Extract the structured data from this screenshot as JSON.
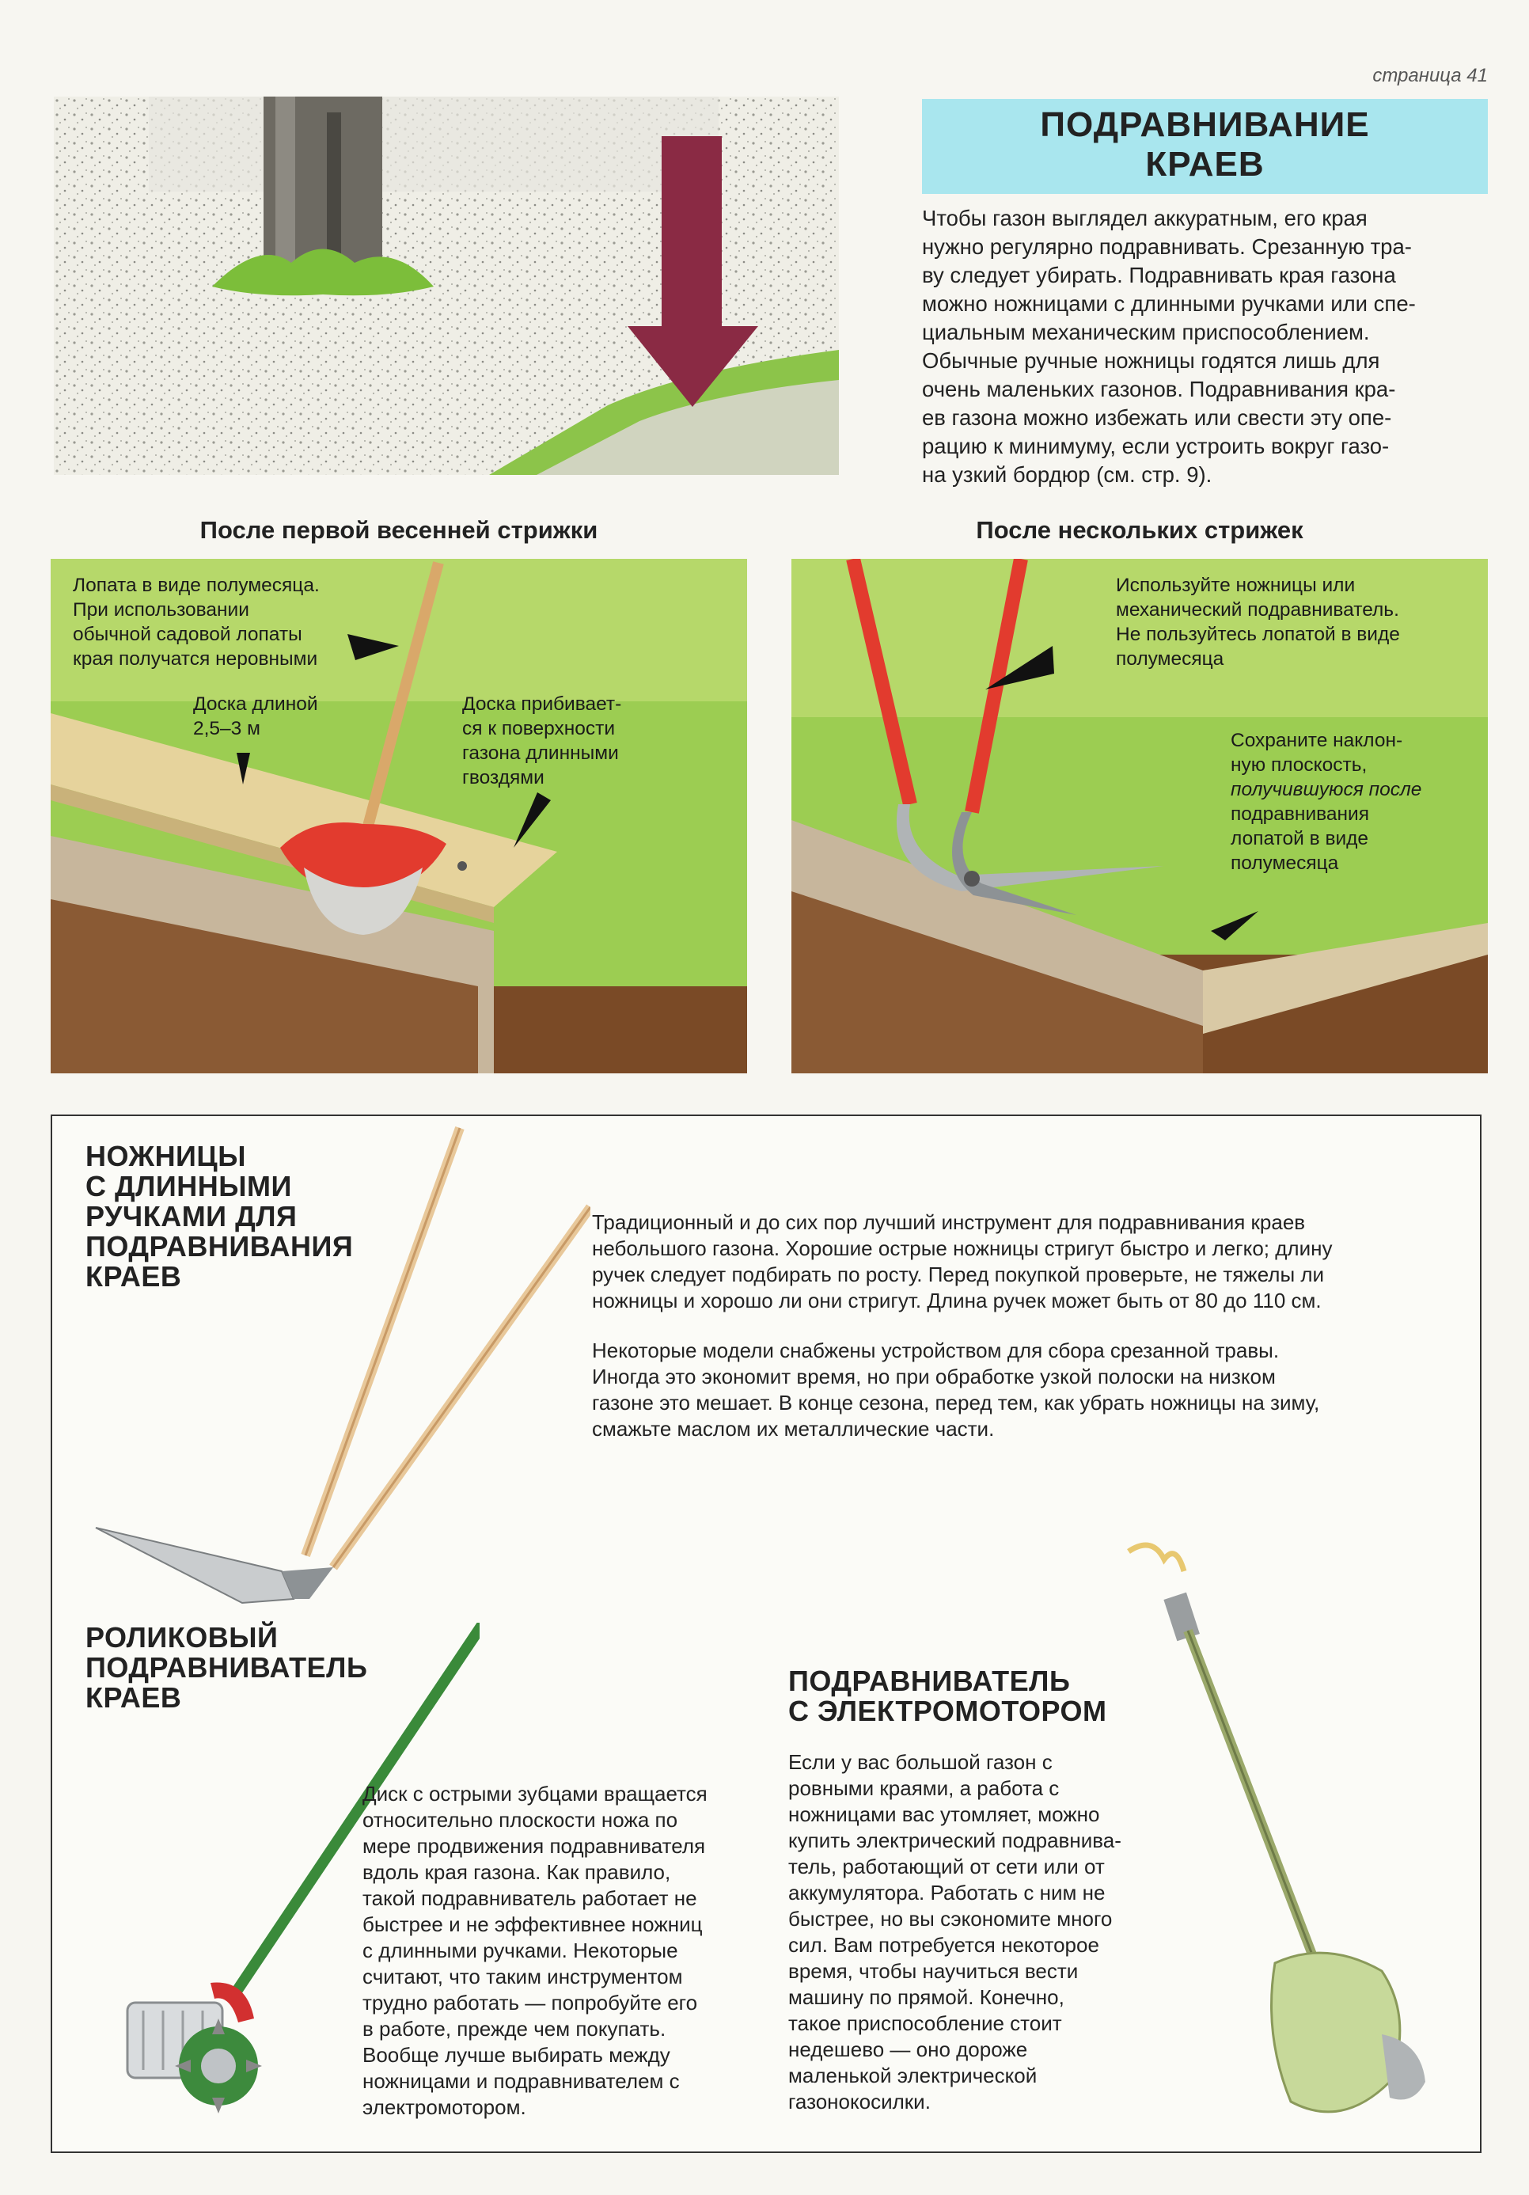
{
  "page_number": "страница 41",
  "title": {
    "line1": "ПОДРАВНИВАНИЕ",
    "line2": "КРАЕВ"
  },
  "intro_lines": [
    "Чтобы газон выглядел аккуратным, его края",
    "нужно регулярно подравнивать. Срезанную тра-",
    "ву следует убирать. Подравнивать края газона",
    "можно ножницами с длинными ручками или спе-",
    "циальным механическим приспособлением.",
    "Обычные ручные ножницы годятся лишь для",
    "очень маленьких газонов. Подравнивания кра-",
    "ев газона можно избежать или свести эту опе-",
    "рацию к минимуму, если устроить вокруг газо-",
    "на узкий бордюр (см. стр. 9)."
  ],
  "left_section": {
    "heading": "После первой весенней стрижки",
    "callout_spade": [
      "Лопата в виде полумесяца.",
      "При использовании",
      "обычной садовой лопаты",
      "края получатся неровными"
    ],
    "callout_board": [
      "Доска длиной",
      "2,5–3 м"
    ],
    "callout_nails": [
      "Доска прибивает-",
      "ся к поверхности",
      "газона длинными",
      "гвоздями"
    ]
  },
  "right_section": {
    "heading": "После нескольких стрижек",
    "callout_shears": [
      "Используйте ножницы или",
      "механический подравниватель.",
      "Не пользуйтесь лопатой в виде",
      "полумесяца"
    ],
    "callout_slope": [
      "Сохраните наклон-",
      "ную плоскость,",
      "получившуюся после",
      "подравнивания",
      "лопатой в виде",
      "полумесяца"
    ]
  },
  "tools": {
    "shears": {
      "title": [
        "НОЖНИЦЫ",
        "С ДЛИННЫМИ",
        "РУЧКАМИ ДЛЯ",
        "ПОДРАВНИВАНИЯ",
        "КРАЕВ"
      ],
      "para1": [
        "Традиционный и до сих пор лучший инструмент для подравнивания краев",
        "небольшого газона. Хорошие острые ножницы стригут быстро и легко; длину",
        "ручек следует подбирать по росту. Перед покупкой проверьте, не тяжелы ли",
        "ножницы и хорошо ли они стригут. Длина ручек может быть от 80 до 110 см."
      ],
      "para2": [
        "Некоторые модели снабжены устройством для сбора срезанной травы.",
        "Иногда это экономит время, но при обработке узкой полоски на низком",
        "газоне это мешает. В конце сезона, перед тем, как убрать ножницы на зиму,",
        "смажьте маслом их металлические части."
      ]
    },
    "roller": {
      "title": [
        "РОЛИКОВЫЙ",
        "ПОДРАВНИВАТЕЛЬ",
        "КРАЕВ"
      ],
      "text": [
        "Диск с острыми зубцами вращается",
        "относительно плоскости ножа по",
        "мере продвижения подравнивателя",
        "вдоль края газона. Как правило,",
        "такой подравниватель работает не",
        "быстрее и не эффективнее ножниц",
        "с длинными ручками. Некоторые",
        "считают, что таким инструментом",
        "трудно работать — попробуйте его",
        "в работе, прежде чем покупать.",
        "Вообще лучше выбирать между",
        "ножницами и подравнивателем с",
        "электромотором."
      ]
    },
    "electric": {
      "title": [
        "ПОДРАВНИВАТЕЛЬ",
        "С ЭЛЕКТРОМОТОРОМ"
      ],
      "text": [
        "Если у вас большой газон с",
        "ровными краями, а работа с",
        "ножницами вас утомляет, можно",
        "купить электрический подравнива-",
        "тель, работающий от сети или от",
        "аккумулятора. Работать с ним не",
        "быстрее, но вы сэкономите много",
        "сил. Вам потребуется некоторое",
        "время, чтобы научиться вести",
        "машину по прямой. Конечно,",
        "такое приспособление стоит",
        "недешево — оно дороже",
        "маленькой электрической",
        "газонокосилки."
      ]
    }
  },
  "colors": {
    "title_bg": "#a9e6ee",
    "grass": "#8cc44a",
    "soil": "#7a4a26",
    "arrow": "#8a2a44",
    "tool_red": "#e23b2e"
  }
}
